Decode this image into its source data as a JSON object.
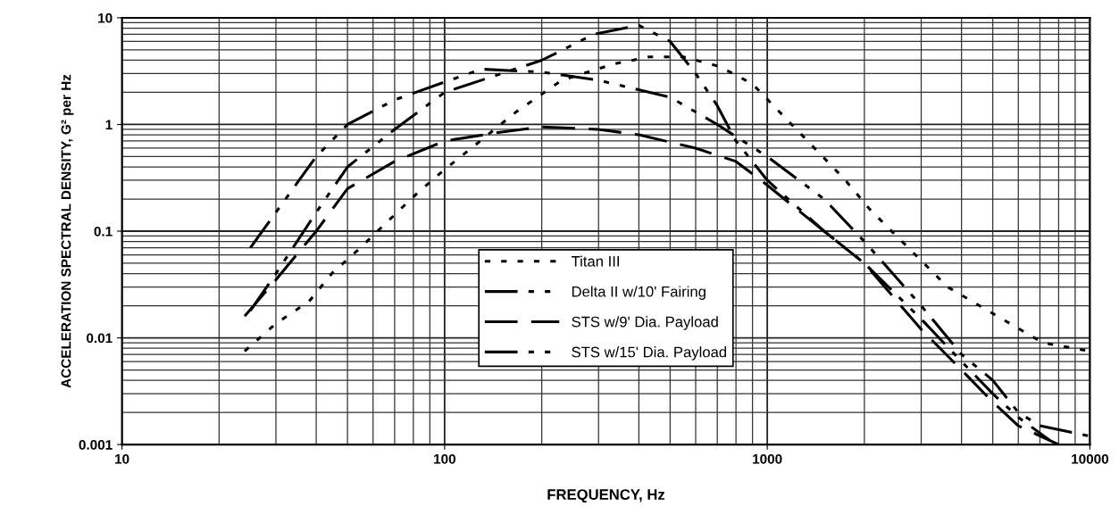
{
  "chart_data": {
    "type": "line",
    "xlabel": "FREQUENCY, Hz",
    "ylabel": "ACCELERATION SPECTRAL DENSITY, G² per Hz",
    "log": "xy",
    "xlim": [
      10,
      10000
    ],
    "ylim": [
      0.001,
      10
    ],
    "xticks": [
      10,
      100,
      1000,
      10000
    ],
    "yticks": [
      0.001,
      0.01,
      0.1,
      1,
      10
    ],
    "grid": true,
    "legend": "center",
    "marker": "none",
    "series": [
      {
        "name": "Titan III",
        "color": "#000000",
        "line_style": "dotted",
        "x": [
          24,
          30,
          38,
          45,
          54,
          66,
          80,
          98,
          121,
          166,
          231,
          335,
          430,
          550,
          710,
          900,
          1190,
          1730,
          2080,
          3620,
          7150,
          10000
        ],
        "values": [
          0.0075,
          0.0136,
          0.022,
          0.041,
          0.067,
          0.12,
          0.21,
          0.36,
          0.6,
          1.3,
          2.6,
          3.7,
          4.3,
          4.3,
          3.5,
          2.4,
          1.0,
          0.31,
          0.16,
          0.03,
          0.009,
          0.0075
        ]
      },
      {
        "name": "Delta II w/10' Fairing",
        "color": "#000000",
        "line_style": "dashdot",
        "x": [
          25,
          30,
          40,
          50,
          70,
          100,
          130,
          200,
          300,
          500,
          700,
          1000,
          1500,
          2000,
          3000,
          4000,
          5000,
          6000,
          7000,
          10000
        ],
        "values": [
          0.07,
          0.15,
          0.5,
          1.0,
          1.7,
          2.5,
          3.3,
          3.1,
          2.6,
          1.8,
          1.0,
          0.5,
          0.2,
          0.08,
          0.02,
          0.007,
          0.004,
          0.002,
          0.0015,
          0.0012
        ]
      },
      {
        "name": "STS w/9' Dia. Payload",
        "color": "#000000",
        "line_style": "dashed",
        "x": [
          24,
          30,
          40,
          50,
          70,
          100,
          150,
          200,
          300,
          400,
          600,
          800,
          1000,
          1500,
          2000,
          3000,
          4000,
          5000,
          6000,
          8000
        ],
        "values": [
          0.016,
          0.035,
          0.1,
          0.25,
          0.45,
          0.7,
          0.85,
          0.95,
          0.9,
          0.8,
          0.6,
          0.45,
          0.27,
          0.1,
          0.05,
          0.012,
          0.005,
          0.0025,
          0.0015,
          0.001
        ]
      },
      {
        "name": "STS w/15' Dia. Payload",
        "color": "#000000",
        "line_style": "dashdot",
        "x": [
          25,
          30,
          40,
          50,
          70,
          100,
          150,
          200,
          290,
          400,
          500,
          600,
          700,
          800,
          1000,
          1500,
          2000,
          3000,
          4000,
          5000,
          6000,
          7500
        ],
        "values": [
          0.018,
          0.04,
          0.15,
          0.4,
          0.9,
          2.0,
          3.0,
          4.0,
          7.0,
          8.5,
          6.0,
          3.0,
          1.5,
          0.7,
          0.3,
          0.1,
          0.05,
          0.015,
          0.006,
          0.003,
          0.0018,
          0.0011
        ]
      }
    ]
  }
}
